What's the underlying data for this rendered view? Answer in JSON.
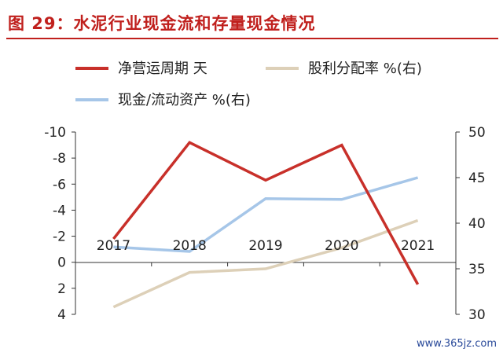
{
  "figure": {
    "title": "图 29：水泥行业现金流和存量现金情况"
  },
  "watermark": "www.365jz.com",
  "colors": {
    "title": "#c0201d",
    "series_red": "#c8302a",
    "series_tan": "#ddd0b8",
    "series_blue": "#a6c6e8"
  },
  "chart_data": {
    "type": "line",
    "title": "",
    "x": [
      "2017",
      "2018",
      "2019",
      "2020",
      "2021"
    ],
    "y_left": {
      "ticks": [
        "-10",
        "-8",
        "-6",
        "-4",
        "-2",
        "0",
        "2",
        "4"
      ],
      "range": [
        -10,
        4
      ],
      "inverted": true
    },
    "y_right": {
      "ticks": [
        "50",
        "45",
        "40",
        "35",
        "30"
      ],
      "range": [
        30,
        50
      ]
    },
    "grid": false,
    "legend_position": "top",
    "series": [
      {
        "name": "净营运周期 天",
        "axis": "left",
        "color": "#c8302a",
        "values": [
          -1.8,
          -9.2,
          -6.3,
          -9.0,
          1.7
        ]
      },
      {
        "name": "股利分配率 %(右)",
        "axis": "right",
        "color": "#ddd0b8",
        "values": [
          30.8,
          34.6,
          35.0,
          37.3,
          40.3
        ]
      },
      {
        "name": "现金/流动资产 %(右)",
        "axis": "right",
        "color": "#a6c6e8",
        "values": [
          37.4,
          36.9,
          42.7,
          42.6,
          45.0
        ]
      }
    ]
  }
}
